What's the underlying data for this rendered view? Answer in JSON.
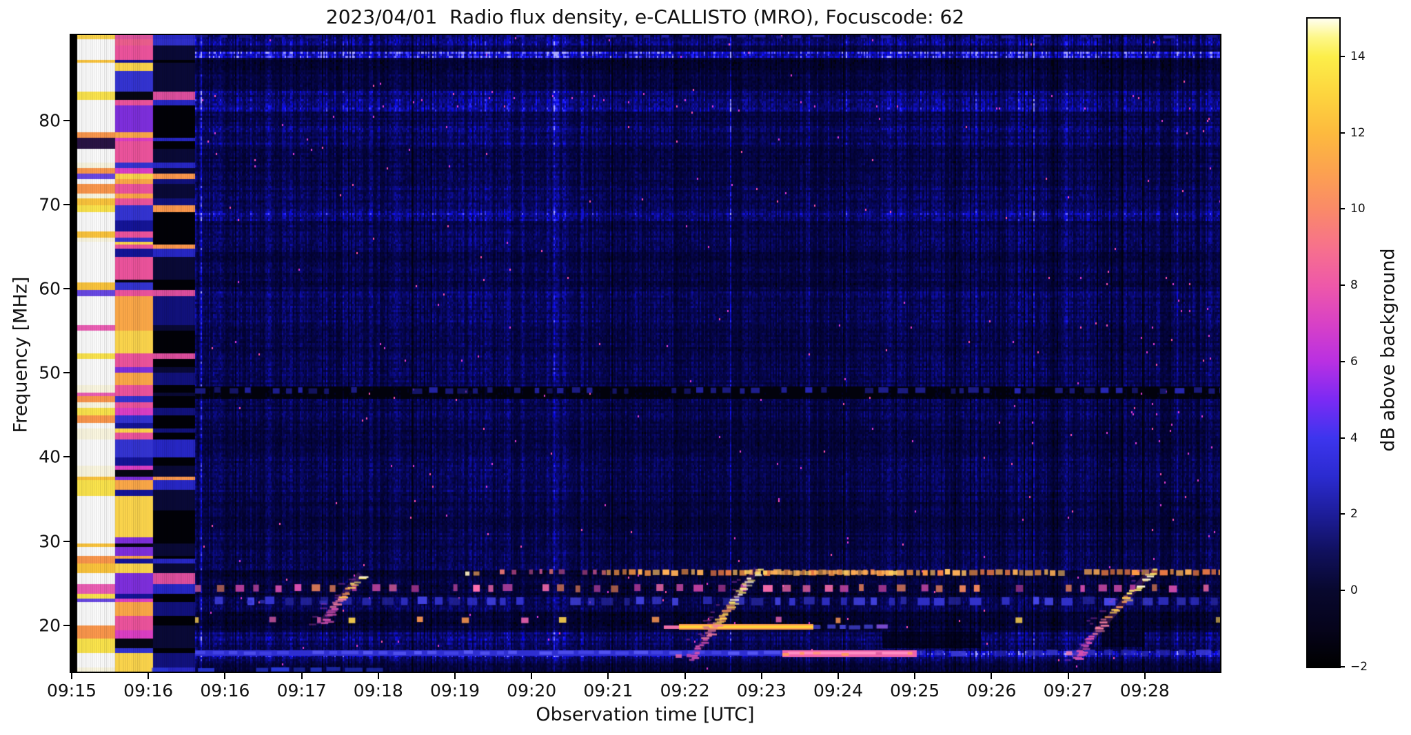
{
  "title": "2023/04/01  Radio flux density, e-CALLISTO (MRO), Focuscode: 62",
  "axes": {
    "x": {
      "label": "Observation time [UTC]",
      "ticks": [
        "09:15",
        "09:16",
        "09:16",
        "09:17",
        "09:18",
        "09:19",
        "09:20",
        "09:21",
        "09:22",
        "09:23",
        "09:24",
        "09:25",
        "09:26",
        "09:27",
        "09:28"
      ]
    },
    "y": {
      "label": "Frequency [MHz]",
      "ticks": [
        "80",
        "70",
        "60",
        "50",
        "40",
        "30",
        "20"
      ]
    }
  },
  "colorbar": {
    "label": "dB above background",
    "ticks": [
      "14",
      "12",
      "10",
      "8",
      "6",
      "4",
      "2",
      "0",
      "−2"
    ],
    "vmin": -2,
    "vmax": 15
  },
  "chart_data": {
    "type": "heatmap",
    "title": "2023/04/01  Radio flux density, e-CALLISTO (MRO), Focuscode: 62",
    "xlabel": "Observation time [UTC]",
    "ylabel": "Frequency [MHz]",
    "x_range_utc": [
      "09:15:00",
      "09:29:00"
    ],
    "x_tick_labels": [
      "09:15",
      "09:16",
      "09:16",
      "09:17",
      "09:18",
      "09:19",
      "09:20",
      "09:21",
      "09:22",
      "09:23",
      "09:24",
      "09:25",
      "09:26",
      "09:27",
      "09:28"
    ],
    "y_range_mhz": [
      14.5,
      90
    ],
    "y_tick_values_mhz": [
      80,
      70,
      60,
      50,
      40,
      30,
      20
    ],
    "color_scale": {
      "label": "dB above background",
      "min": -2,
      "max": 15,
      "tick_values": [
        14,
        12,
        10,
        8,
        6,
        4,
        2,
        0,
        -2
      ],
      "colormap": "gnuplot2-like: black -> dark blue -> blue -> violet -> magenta -> pink -> orange -> yellow -> white"
    },
    "grid": false,
    "legend": "colorbar on right",
    "features": [
      {
        "kind": "calibration-columns",
        "time_utc": "09:15:00-09:15:50",
        "description": "three saturated vertical bands at start: white/yellow, magenta-orange, then near-black"
      },
      {
        "kind": "interference-line",
        "freq_mhz": 87.5,
        "time_utc": "09:15-09:29",
        "description": "persistent bright blue horizontal line near top"
      },
      {
        "kind": "quiet-band",
        "freq_mhz": [
          75,
          85
        ],
        "description": "dark band below the 87 MHz line"
      },
      {
        "kind": "rfi-dash-row",
        "freq_mhz": 25,
        "time_utc": "09:16-09:29",
        "description": "periodic magenta/orange dashes"
      },
      {
        "kind": "quiet-row",
        "freq_mhz": 49,
        "description": "near-black row with sparse blue dashes"
      },
      {
        "kind": "continuum-band",
        "freq_mhz": 27.5,
        "time_utc": "09:20.5-09:29",
        "description": "bright orange dashed horizontal band"
      },
      {
        "kind": "drifting-burst",
        "time_utc": "09:17.6-09:18.1",
        "freq_mhz": [
          21,
          27.5
        ],
        "description": "diagonal burst drifting upward in frequency"
      },
      {
        "kind": "drifting-burst",
        "time_utc": "09:22.0-09:22.9",
        "freq_mhz": [
          17.5,
          28
        ],
        "description": "brightest diagonal burst, white-yellow core"
      },
      {
        "kind": "drifting-burst",
        "time_utc": "09:27.0-09:28.1",
        "freq_mhz": [
          17.5,
          28
        ],
        "description": "diagonal burst drifting upward in frequency"
      },
      {
        "kind": "bright-line",
        "freq_mhz": 21,
        "time_utc": "09:22-09:23.8",
        "description": "intense yellow horizontal streak fading into blue"
      },
      {
        "kind": "band",
        "freq_mhz": 19,
        "time_utc": "09:23.5-09:25.3",
        "description": "pink horizontal enhancement"
      },
      {
        "kind": "bright-line",
        "freq_mhz": 18.5,
        "time_utc": "09:15.8-09:22",
        "description": "enhanced blue horizontal line"
      },
      {
        "kind": "background",
        "description": "dark navy-blue noise field with vertical striations and horizontal banding"
      }
    ]
  }
}
